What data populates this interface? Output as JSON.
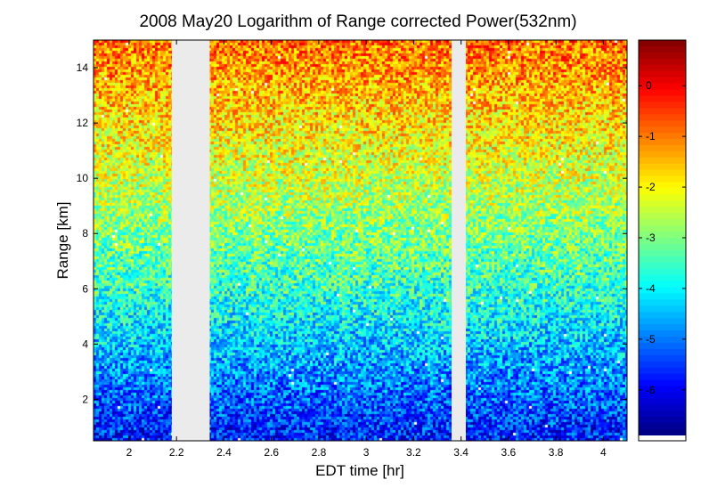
{
  "chart_data": {
    "type": "heatmap",
    "title": "2008 May20  Logarithm of Range corrected Power(532nm)",
    "xlabel": "EDT time [hr]",
    "ylabel": "Range [km]",
    "xlim": [
      1.85,
      4.1
    ],
    "ylim": [
      0.5,
      15.0
    ],
    "x_ticks": [
      2,
      2.2,
      2.4,
      2.6,
      2.8,
      3,
      3.2,
      3.4,
      3.6,
      3.8,
      4
    ],
    "x_tick_labels": [
      "2",
      "2.2",
      "2.4",
      "2.6",
      "2.8",
      "3",
      "3.2",
      "3.4",
      "3.6",
      "3.8",
      "4"
    ],
    "y_ticks": [
      2,
      4,
      6,
      8,
      10,
      12,
      14
    ],
    "y_tick_labels": [
      "2",
      "4",
      "6",
      "8",
      "10",
      "12",
      "14"
    ],
    "colorbar": {
      "colormap": "jet",
      "clim": [
        -6.9,
        0.9
      ],
      "ticks": [
        0,
        -1,
        -2,
        -3,
        -4,
        -5,
        -6
      ],
      "tick_labels": [
        "0",
        "-1",
        "-2",
        "-3",
        "-4",
        "-5",
        "-6"
      ]
    },
    "data_gaps": [
      [
        2.18,
        2.34
      ],
      [
        3.36,
        3.42
      ]
    ],
    "value_profile": {
      "range_km": [
        0.5,
        1.0,
        1.5,
        2,
        3,
        4,
        5,
        6,
        7,
        8,
        9,
        10,
        11,
        12,
        13,
        14,
        15
      ],
      "mean_log_power": [
        -5.7,
        -5.6,
        -5.4,
        -5.2,
        -4.8,
        -4.4,
        -4.0,
        -3.6,
        -3.3,
        -3.0,
        -2.7,
        -2.4,
        -2.1,
        -1.8,
        -1.5,
        -1.2,
        -0.9
      ]
    },
    "gap_color": "#ebebeb"
  }
}
